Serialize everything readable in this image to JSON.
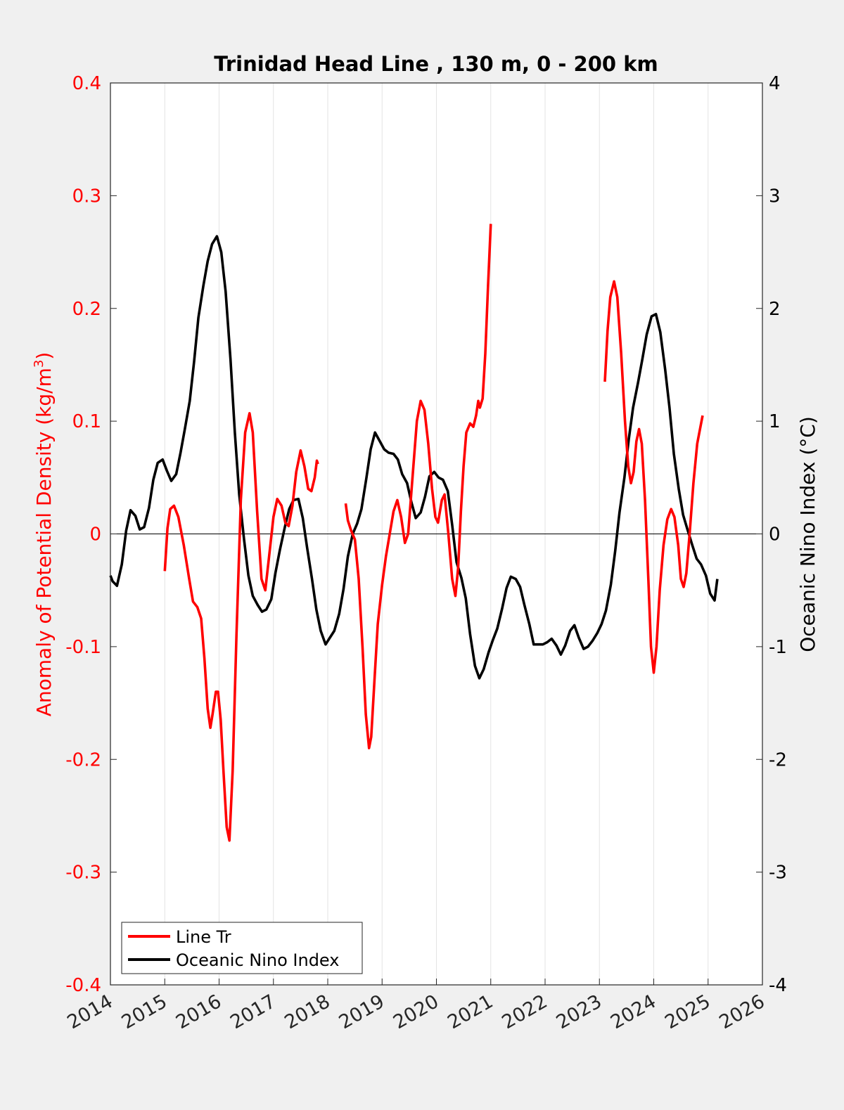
{
  "chart_data": {
    "type": "line",
    "title": "Trinidad Head Line , 130 m, 0 - 200 km",
    "ylabel_left": "Anomaly of Potential Density (kg/m",
    "ylabel_left_sup": "3",
    "ylabel_left_close": ")",
    "ylabel_right": "Oceanic Nino Index (°C)",
    "xlim": [
      2014,
      2026
    ],
    "ylim_left": [
      -0.4,
      0.4
    ],
    "ylim_right": [
      -4,
      4
    ],
    "x_ticks": [
      "2014",
      "2015",
      "2016",
      "2017",
      "2018",
      "2019",
      "2020",
      "2021",
      "2022",
      "2023",
      "2024",
      "2025",
      "2026"
    ],
    "y_left_ticks": [
      "0.4",
      "0.3",
      "0.2",
      "0.1",
      "0",
      "-0.1",
      "-0.2",
      "-0.3",
      "-0.4"
    ],
    "y_right_ticks": [
      "4",
      "3",
      "2",
      "1",
      "0",
      "-1",
      "-2",
      "-3",
      "-4"
    ],
    "grid": "vertical",
    "legend_position": "bottom-left",
    "colors": {
      "line_tr": "#ff0000",
      "oni": "#000000",
      "left_axis": "#ff0000",
      "right_axis": "#000000"
    },
    "series": [
      {
        "name": "Line Tr",
        "axis": "left",
        "color": "#ff0000",
        "segments": [
          [
            [
              2015.0,
              -0.033
            ],
            [
              2015.05,
              0.005
            ],
            [
              2015.1,
              0.022
            ],
            [
              2015.17,
              0.025
            ],
            [
              2015.25,
              0.015
            ],
            [
              2015.35,
              -0.01
            ],
            [
              2015.45,
              -0.04
            ],
            [
              2015.52,
              -0.06
            ],
            [
              2015.6,
              -0.065
            ],
            [
              2015.67,
              -0.075
            ],
            [
              2015.73,
              -0.11
            ],
            [
              2015.79,
              -0.155
            ],
            [
              2015.84,
              -0.172
            ],
            [
              2015.88,
              -0.16
            ],
            [
              2015.94,
              -0.14
            ],
            [
              2015.98,
              -0.14
            ],
            [
              2016.03,
              -0.165
            ],
            [
              2016.08,
              -0.21
            ],
            [
              2016.14,
              -0.26
            ],
            [
              2016.19,
              -0.272
            ],
            [
              2016.25,
              -0.21
            ],
            [
              2016.32,
              -0.09
            ],
            [
              2016.4,
              0.03
            ],
            [
              2016.48,
              0.09
            ],
            [
              2016.56,
              0.107
            ],
            [
              2016.62,
              0.09
            ],
            [
              2016.7,
              0.02
            ],
            [
              2016.78,
              -0.04
            ],
            [
              2016.85,
              -0.05
            ],
            [
              2016.92,
              -0.02
            ],
            [
              2017.0,
              0.015
            ],
            [
              2017.07,
              0.031
            ],
            [
              2017.15,
              0.025
            ],
            [
              2017.22,
              0.01
            ],
            [
              2017.28,
              0.007
            ],
            [
              2017.35,
              0.025
            ],
            [
              2017.42,
              0.055
            ],
            [
              2017.5,
              0.074
            ],
            [
              2017.57,
              0.06
            ],
            [
              2017.64,
              0.04
            ],
            [
              2017.7,
              0.038
            ],
            [
              2017.76,
              0.05
            ],
            [
              2017.8,
              0.065
            ],
            [
              2017.82,
              0.062
            ]
          ],
          [
            [
              2018.33,
              0.027
            ],
            [
              2018.37,
              0.012
            ],
            [
              2018.43,
              0.003
            ],
            [
              2018.5,
              -0.005
            ],
            [
              2018.57,
              -0.04
            ],
            [
              2018.64,
              -0.1
            ],
            [
              2018.7,
              -0.16
            ],
            [
              2018.76,
              -0.19
            ],
            [
              2018.8,
              -0.18
            ],
            [
              2018.86,
              -0.13
            ],
            [
              2018.92,
              -0.08
            ],
            [
              2019.0,
              -0.045
            ],
            [
              2019.07,
              -0.02
            ],
            [
              2019.14,
              0.0
            ],
            [
              2019.21,
              0.02
            ],
            [
              2019.28,
              0.03
            ],
            [
              2019.35,
              0.015
            ],
            [
              2019.42,
              -0.008
            ],
            [
              2019.48,
              0.0
            ],
            [
              2019.56,
              0.05
            ],
            [
              2019.64,
              0.1
            ],
            [
              2019.71,
              0.118
            ],
            [
              2019.78,
              0.11
            ],
            [
              2019.85,
              0.08
            ],
            [
              2019.92,
              0.04
            ],
            [
              2019.98,
              0.015
            ],
            [
              2020.03,
              0.01
            ],
            [
              2020.1,
              0.03
            ],
            [
              2020.15,
              0.035
            ],
            [
              2020.22,
              0.0
            ],
            [
              2020.29,
              -0.04
            ],
            [
              2020.35,
              -0.055
            ],
            [
              2020.4,
              -0.03
            ],
            [
              2020.45,
              0.02
            ],
            [
              2020.5,
              0.06
            ],
            [
              2020.55,
              0.09
            ],
            [
              2020.62,
              0.098
            ],
            [
              2020.68,
              0.095
            ],
            [
              2020.73,
              0.105
            ],
            [
              2020.77,
              0.118
            ],
            [
              2020.8,
              0.112
            ],
            [
              2020.85,
              0.12
            ],
            [
              2020.9,
              0.16
            ],
            [
              2020.95,
              0.22
            ],
            [
              2021.0,
              0.275
            ]
          ],
          [
            [
              2023.1,
              0.135
            ],
            [
              2023.15,
              0.18
            ],
            [
              2023.2,
              0.21
            ],
            [
              2023.27,
              0.224
            ],
            [
              2023.33,
              0.21
            ],
            [
              2023.4,
              0.16
            ],
            [
              2023.47,
              0.1
            ],
            [
              2023.53,
              0.06
            ],
            [
              2023.58,
              0.045
            ],
            [
              2023.63,
              0.055
            ],
            [
              2023.68,
              0.082
            ],
            [
              2023.73,
              0.093
            ],
            [
              2023.78,
              0.08
            ],
            [
              2023.84,
              0.03
            ],
            [
              2023.9,
              -0.04
            ],
            [
              2023.95,
              -0.1
            ],
            [
              2024.0,
              -0.123
            ],
            [
              2024.05,
              -0.1
            ],
            [
              2024.11,
              -0.05
            ],
            [
              2024.18,
              -0.01
            ],
            [
              2024.25,
              0.013
            ],
            [
              2024.32,
              0.022
            ],
            [
              2024.38,
              0.015
            ],
            [
              2024.45,
              -0.01
            ],
            [
              2024.5,
              -0.04
            ],
            [
              2024.55,
              -0.047
            ],
            [
              2024.6,
              -0.035
            ],
            [
              2024.66,
              0.0
            ],
            [
              2024.73,
              0.045
            ],
            [
              2024.8,
              0.08
            ],
            [
              2024.86,
              0.095
            ],
            [
              2024.9,
              0.105
            ]
          ]
        ]
      },
      {
        "name": "Oceanic Nino Index",
        "axis": "right",
        "color": "#000000",
        "segments": [
          [
            [
              2014.0,
              -0.37
            ],
            [
              2014.04,
              -0.42
            ],
            [
              2014.12,
              -0.46
            ],
            [
              2014.21,
              -0.27
            ],
            [
              2014.29,
              0.03
            ],
            [
              2014.37,
              0.21
            ],
            [
              2014.46,
              0.16
            ],
            [
              2014.54,
              0.04
            ],
            [
              2014.62,
              0.06
            ],
            [
              2014.71,
              0.23
            ],
            [
              2014.79,
              0.48
            ],
            [
              2014.87,
              0.63
            ],
            [
              2014.96,
              0.66
            ],
            [
              2015.04,
              0.56
            ],
            [
              2015.12,
              0.47
            ],
            [
              2015.21,
              0.53
            ],
            [
              2015.29,
              0.72
            ],
            [
              2015.37,
              0.93
            ],
            [
              2015.46,
              1.18
            ],
            [
              2015.54,
              1.53
            ],
            [
              2015.62,
              1.92
            ],
            [
              2015.71,
              2.2
            ],
            [
              2015.79,
              2.42
            ],
            [
              2015.87,
              2.57
            ],
            [
              2015.96,
              2.64
            ],
            [
              2016.04,
              2.5
            ],
            [
              2016.12,
              2.15
            ],
            [
              2016.21,
              1.55
            ],
            [
              2016.29,
              0.9
            ],
            [
              2016.37,
              0.35
            ],
            [
              2016.46,
              -0.05
            ],
            [
              2016.54,
              -0.37
            ],
            [
              2016.62,
              -0.55
            ],
            [
              2016.71,
              -0.63
            ],
            [
              2016.79,
              -0.69
            ],
            [
              2016.87,
              -0.67
            ],
            [
              2016.96,
              -0.58
            ],
            [
              2017.04,
              -0.34
            ],
            [
              2017.12,
              -0.14
            ],
            [
              2017.21,
              0.06
            ],
            [
              2017.29,
              0.22
            ],
            [
              2017.37,
              0.3
            ],
            [
              2017.46,
              0.31
            ],
            [
              2017.54,
              0.14
            ],
            [
              2017.62,
              -0.12
            ],
            [
              2017.71,
              -0.4
            ],
            [
              2017.79,
              -0.67
            ],
            [
              2017.87,
              -0.86
            ],
            [
              2017.96,
              -0.98
            ],
            [
              2018.04,
              -0.92
            ],
            [
              2018.12,
              -0.86
            ],
            [
              2018.21,
              -0.71
            ],
            [
              2018.29,
              -0.49
            ],
            [
              2018.37,
              -0.2
            ],
            [
              2018.46,
              0.0
            ],
            [
              2018.54,
              0.09
            ],
            [
              2018.62,
              0.22
            ],
            [
              2018.71,
              0.49
            ],
            [
              2018.79,
              0.75
            ],
            [
              2018.87,
              0.9
            ],
            [
              2018.96,
              0.82
            ],
            [
              2019.04,
              0.75
            ],
            [
              2019.12,
              0.72
            ],
            [
              2019.21,
              0.71
            ],
            [
              2019.29,
              0.66
            ],
            [
              2019.37,
              0.53
            ],
            [
              2019.46,
              0.45
            ],
            [
              2019.54,
              0.28
            ],
            [
              2019.62,
              0.14
            ],
            [
              2019.71,
              0.19
            ],
            [
              2019.79,
              0.33
            ],
            [
              2019.87,
              0.51
            ],
            [
              2019.96,
              0.55
            ],
            [
              2020.04,
              0.5
            ],
            [
              2020.12,
              0.48
            ],
            [
              2020.21,
              0.38
            ],
            [
              2020.29,
              0.08
            ],
            [
              2020.37,
              -0.25
            ],
            [
              2020.46,
              -0.39
            ],
            [
              2020.54,
              -0.57
            ],
            [
              2020.62,
              -0.89
            ],
            [
              2020.71,
              -1.17
            ],
            [
              2020.79,
              -1.28
            ],
            [
              2020.87,
              -1.2
            ],
            [
              2020.96,
              -1.05
            ],
            [
              2021.04,
              -0.94
            ],
            [
              2021.12,
              -0.84
            ],
            [
              2021.21,
              -0.66
            ],
            [
              2021.29,
              -0.48
            ],
            [
              2021.37,
              -0.38
            ],
            [
              2021.46,
              -0.4
            ],
            [
              2021.54,
              -0.47
            ],
            [
              2021.62,
              -0.63
            ],
            [
              2021.71,
              -0.8
            ],
            [
              2021.79,
              -0.98
            ],
            [
              2021.87,
              -0.98
            ],
            [
              2021.96,
              -0.98
            ],
            [
              2022.04,
              -0.96
            ],
            [
              2022.12,
              -0.93
            ],
            [
              2022.21,
              -0.99
            ],
            [
              2022.29,
              -1.07
            ],
            [
              2022.37,
              -0.99
            ],
            [
              2022.46,
              -0.86
            ],
            [
              2022.54,
              -0.81
            ],
            [
              2022.62,
              -0.92
            ],
            [
              2022.71,
              -1.02
            ],
            [
              2022.79,
              -1.0
            ],
            [
              2022.87,
              -0.95
            ],
            [
              2022.96,
              -0.88
            ],
            [
              2023.04,
              -0.8
            ],
            [
              2023.12,
              -0.68
            ],
            [
              2023.21,
              -0.45
            ],
            [
              2023.29,
              -0.15
            ],
            [
              2023.37,
              0.19
            ],
            [
              2023.46,
              0.5
            ],
            [
              2023.54,
              0.84
            ],
            [
              2023.62,
              1.12
            ],
            [
              2023.71,
              1.34
            ],
            [
              2023.79,
              1.55
            ],
            [
              2023.87,
              1.77
            ],
            [
              2023.96,
              1.93
            ],
            [
              2024.04,
              1.95
            ],
            [
              2024.12,
              1.79
            ],
            [
              2024.21,
              1.46
            ],
            [
              2024.29,
              1.12
            ],
            [
              2024.37,
              0.71
            ],
            [
              2024.46,
              0.4
            ],
            [
              2024.54,
              0.17
            ],
            [
              2024.62,
              0.04
            ],
            [
              2024.71,
              -0.1
            ],
            [
              2024.79,
              -0.22
            ],
            [
              2024.87,
              -0.27
            ],
            [
              2024.96,
              -0.37
            ],
            [
              2025.04,
              -0.53
            ],
            [
              2025.12,
              -0.59
            ],
            [
              2025.17,
              -0.4
            ]
          ]
        ]
      }
    ]
  },
  "legend": [
    {
      "label": "Line Tr",
      "color": "#ff0000"
    },
    {
      "label": "Oceanic Nino Index",
      "color": "#000000"
    }
  ]
}
